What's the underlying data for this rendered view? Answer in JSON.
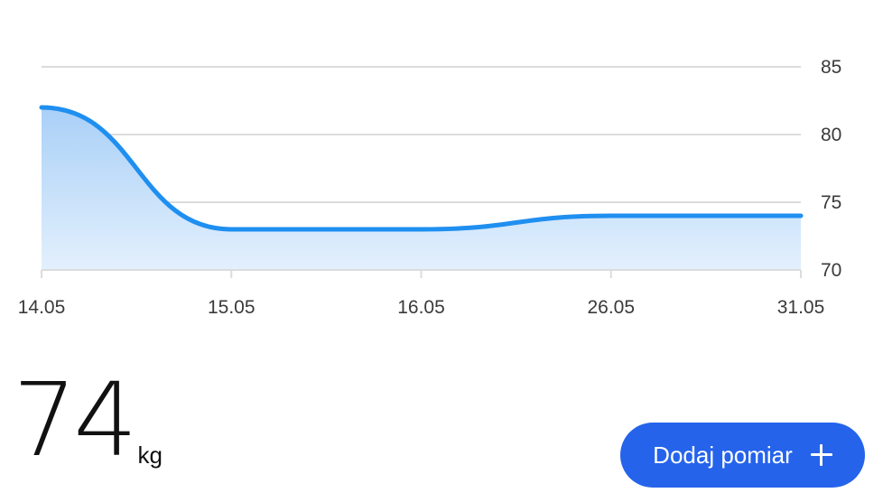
{
  "chart_data": {
    "type": "area",
    "categories": [
      "14.05",
      "15.05",
      "16.05",
      "26.05",
      "31.05"
    ],
    "values": [
      82,
      73,
      73,
      74,
      74
    ],
    "ylim": [
      70,
      85
    ],
    "yticks": [
      70,
      75,
      80,
      85
    ],
    "y_axis_side": "right",
    "grid": true,
    "colors": {
      "line": "#1f8ff0",
      "fill_top": "#a9d0f7",
      "fill_bottom": "#e3f0fd",
      "grid": "#dcdcdc"
    }
  },
  "current": {
    "value": "74",
    "unit": "kg"
  },
  "add_button": {
    "label": "Dodaj pomiar",
    "icon": "plus-icon",
    "color": "#2563eb"
  }
}
